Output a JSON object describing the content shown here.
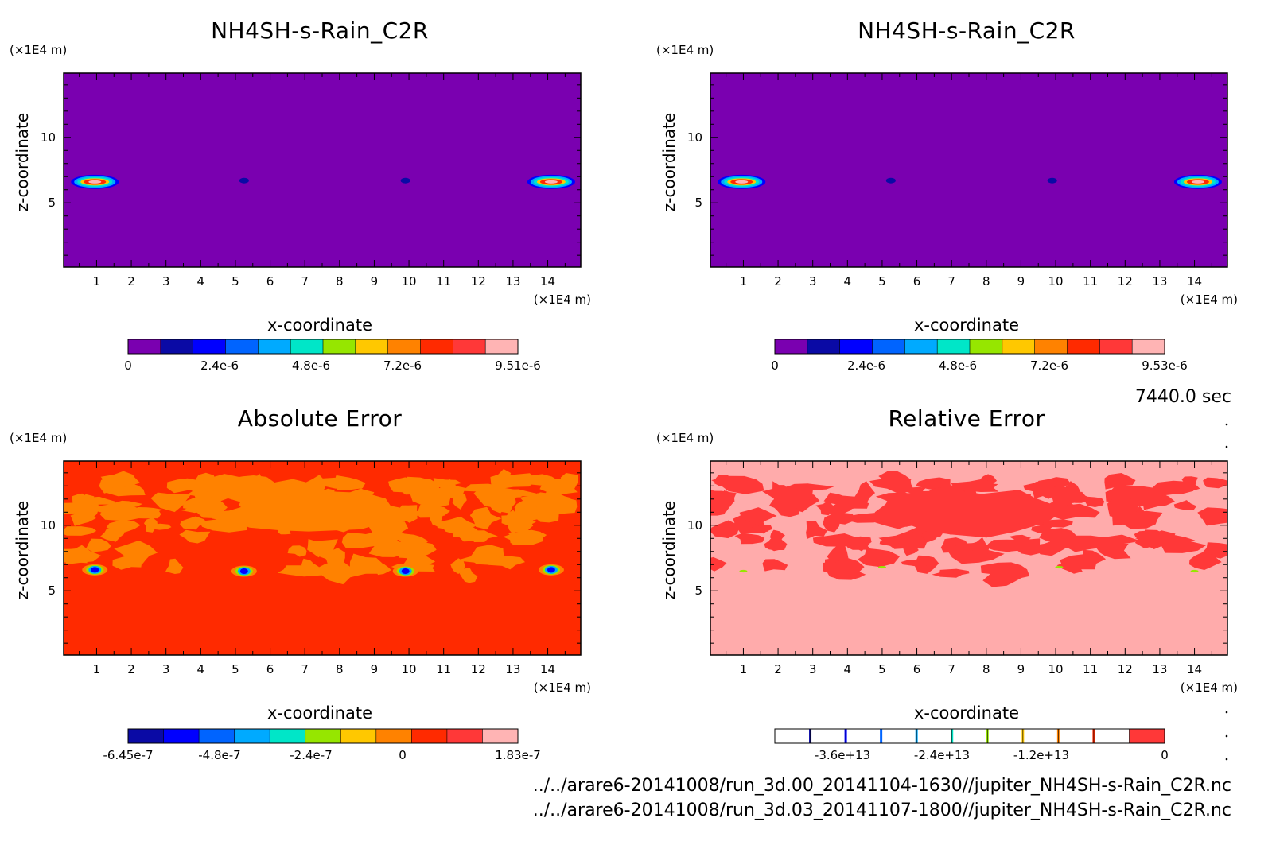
{
  "time_label": "7440.0 sec",
  "files": [
    "../../arare6-20141008/run_3d.00_20141104-1630//jupiter_NH4SH-s-Rain_C2R.nc",
    "../../arare6-20141008/run_3d.03_20141107-1800//jupiter_NH4SH-s-Rain_C2R.nc"
  ],
  "colors": {
    "purple": "#7a00b0",
    "orange": "#ff8200",
    "red": "#ff2a00",
    "light_red": "#ff3838",
    "pink": "#ffabab"
  },
  "chart_data": [
    {
      "type": "heatmap",
      "title": "NH4SH-s-Rain_C2R",
      "xlabel": "x-coordinate",
      "ylabel": "z-coordinate",
      "x_unit": "(×1E4 m)",
      "y_unit": "(×1E4 m)",
      "xlim": [
        0.05,
        14.95
      ],
      "ylim": [
        0.1,
        14.9
      ],
      "x_ticks": [
        "1",
        "2",
        "3",
        "4",
        "5",
        "6",
        "7",
        "8",
        "9",
        "10",
        "11",
        "12",
        "13",
        "14"
      ],
      "y_ticks": [
        "5",
        "10"
      ],
      "background": "#7a00b0",
      "colorbar": {
        "colors": [
          "#7a00b0",
          "#0a0aa5",
          "#0000ff",
          "#0064ff",
          "#00aaff",
          "#00e6c8",
          "#96e600",
          "#ffc800",
          "#ff8200",
          "#ff2a00",
          "#ff3838",
          "#ffb4b4"
        ],
        "labels": [
          "0",
          "2.4e-6",
          "4.8e-6",
          "7.2e-6",
          "9.51e-6"
        ]
      },
      "features": [
        {
          "x": 0.95,
          "z": 6.6,
          "kind": "blob"
        },
        {
          "x": 14.1,
          "z": 6.6,
          "kind": "blob"
        },
        {
          "x": 5.25,
          "z": 6.7,
          "kind": "dot"
        },
        {
          "x": 9.9,
          "z": 6.7,
          "kind": "dot"
        }
      ]
    },
    {
      "type": "heatmap",
      "title": "NH4SH-s-Rain_C2R",
      "xlabel": "x-coordinate",
      "ylabel": "z-coordinate",
      "x_unit": "(×1E4 m)",
      "y_unit": "(×1E4 m)",
      "xlim": [
        0.05,
        14.95
      ],
      "ylim": [
        0.1,
        14.9
      ],
      "x_ticks": [
        "1",
        "2",
        "3",
        "4",
        "5",
        "6",
        "7",
        "8",
        "9",
        "10",
        "11",
        "12",
        "13",
        "14"
      ],
      "y_ticks": [
        "5",
        "10"
      ],
      "background": "#7a00b0",
      "colorbar": {
        "colors": [
          "#7a00b0",
          "#0a0aa5",
          "#0000ff",
          "#0064ff",
          "#00aaff",
          "#00e6c8",
          "#96e600",
          "#ffc800",
          "#ff8200",
          "#ff2a00",
          "#ff3838",
          "#ffb4b4"
        ],
        "labels": [
          "0",
          "2.4e-6",
          "4.8e-6",
          "7.2e-6",
          "9.53e-6"
        ]
      },
      "features": [
        {
          "x": 0.95,
          "z": 6.6,
          "kind": "blob"
        },
        {
          "x": 14.1,
          "z": 6.6,
          "kind": "blob"
        },
        {
          "x": 5.25,
          "z": 6.7,
          "kind": "dot"
        },
        {
          "x": 9.9,
          "z": 6.7,
          "kind": "dot"
        }
      ]
    },
    {
      "type": "heatmap",
      "title": "Absolute Error",
      "xlabel": "x-coordinate",
      "ylabel": "z-coordinate",
      "x_unit": "(×1E4 m)",
      "y_unit": "(×1E4 m)",
      "xlim": [
        0.05,
        14.95
      ],
      "ylim": [
        0.1,
        14.9
      ],
      "x_ticks": [
        "1",
        "2",
        "3",
        "4",
        "5",
        "6",
        "7",
        "8",
        "9",
        "10",
        "11",
        "12",
        "13",
        "14"
      ],
      "y_ticks": [
        "5",
        "10"
      ],
      "background": "#ff2a00",
      "secondary": "#ff8200",
      "colorbar": {
        "colors": [
          "#0a0aa5",
          "#0000ff",
          "#0064ff",
          "#00aaff",
          "#00e6c8",
          "#96e600",
          "#ffc800",
          "#ff8200",
          "#ff2a00",
          "#ff3838",
          "#ffb4b4"
        ],
        "labels": [
          "-6.45e-7",
          "-4.8e-7",
          "-2.4e-7",
          "0",
          "1.83e-7"
        ]
      },
      "features": [
        {
          "x": 0.95,
          "z": 6.6,
          "kind": "spot"
        },
        {
          "x": 14.1,
          "z": 6.6,
          "kind": "spot"
        },
        {
          "x": 5.25,
          "z": 6.5,
          "kind": "spot"
        },
        {
          "x": 9.9,
          "z": 6.5,
          "kind": "spot"
        }
      ]
    },
    {
      "type": "heatmap",
      "title": "Relative Error",
      "xlabel": "x-coordinate",
      "ylabel": "z-coordinate",
      "x_unit": "(×1E4 m)",
      "y_unit": "(×1E4 m)",
      "xlim": [
        0.05,
        14.95
      ],
      "ylim": [
        0.1,
        14.9
      ],
      "x_ticks": [
        "1",
        "2",
        "3",
        "4",
        "5",
        "6",
        "7",
        "8",
        "9",
        "10",
        "11",
        "12",
        "13",
        "14"
      ],
      "y_ticks": [
        "5",
        "10"
      ],
      "background": "#ffabab",
      "secondary": "#ff3838",
      "colorbar": {
        "colors": [
          "#ffffff",
          "#ffffff",
          "#ffffff",
          "#ffffff",
          "#ffffff",
          "#ffffff",
          "#ffffff",
          "#ffffff",
          "#ffffff",
          "#ffffff",
          "#ff3838"
        ],
        "ticks": [
          "#0a0aa5",
          "#0000ff",
          "#0064ff",
          "#00aaff",
          "#00e6c8",
          "#96e600",
          "#ffc800",
          "#ff8200",
          "#ff2a00"
        ],
        "labels": [
          "-3.6e+13",
          "-2.4e+13",
          "-1.2e+13",
          "0"
        ]
      },
      "features": [
        {
          "x": 1.0,
          "z": 6.5,
          "kind": "tiny"
        },
        {
          "x": 14.0,
          "z": 6.5,
          "kind": "tiny"
        },
        {
          "x": 5.0,
          "z": 6.8,
          "kind": "tiny"
        },
        {
          "x": 10.1,
          "z": 6.8,
          "kind": "tiny"
        }
      ]
    }
  ]
}
